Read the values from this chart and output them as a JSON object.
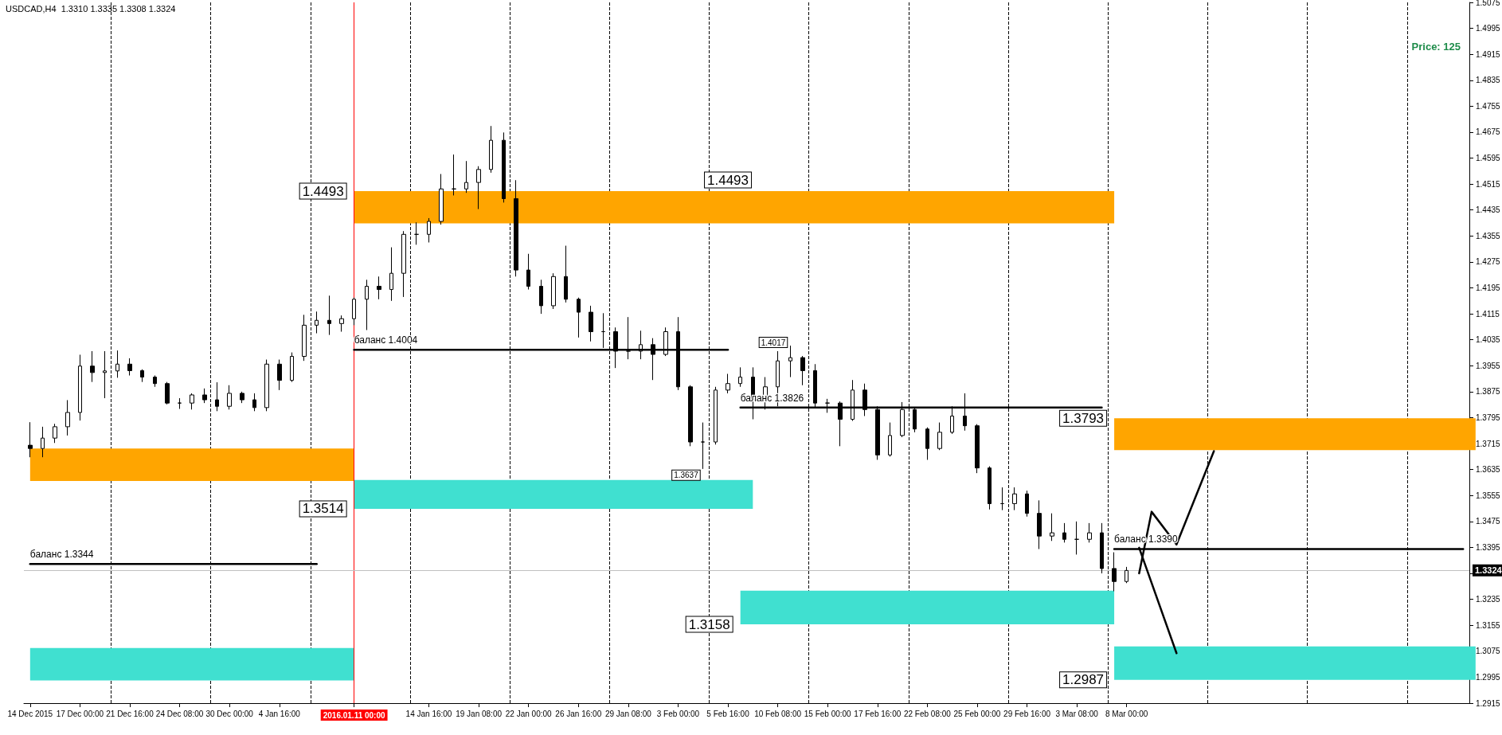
{
  "chart_data": {
    "type": "candlestick",
    "title": "USDCAD,H4  1.3310 1.3335 1.3308 1.3324",
    "categories": [
      "14 Dec 2015",
      null,
      null,
      null,
      "17 Dec 00:00",
      null,
      null,
      null,
      "21 Dec 16:00",
      null,
      null,
      null,
      "24 Dec 08:00",
      null,
      null,
      null,
      "30 Dec 00:00",
      null,
      null,
      null,
      "4 Jan 16:00",
      null,
      null,
      null,
      null,
      null,
      "2016.01.11 00:00",
      null,
      null,
      null,
      null,
      null,
      "14 Jan 16:00",
      null,
      null,
      null,
      "19 Jan 08:00",
      null,
      null,
      null,
      "22 Jan 00:00",
      null,
      null,
      null,
      "26 Jan 16:00",
      null,
      null,
      null,
      "29 Jan 08:00",
      null,
      null,
      null,
      "3 Feb 00:00",
      null,
      null,
      null,
      "5 Feb 16:00",
      null,
      null,
      null,
      "10 Feb 08:00",
      null,
      null,
      null,
      "15 Feb 00:00",
      null,
      null,
      null,
      "17 Feb 16:00",
      null,
      null,
      null,
      "22 Feb 08:00",
      null,
      null,
      null,
      "25 Feb 00:00",
      null,
      null,
      null,
      "29 Feb 16:00",
      null,
      null,
      null,
      "3 Mar 08:00",
      null,
      null,
      null,
      "8 Mar 00:00",
      null,
      null,
      null,
      null,
      null,
      null,
      null,
      null,
      null,
      null,
      null,
      null,
      null,
      null,
      null,
      null,
      null,
      null,
      null,
      null,
      null,
      null,
      null,
      null,
      null,
      null,
      null
    ],
    "ohlc": [
      [
        1.371,
        1.3781,
        1.3673,
        1.37
      ],
      [
        1.37,
        1.3767,
        1.3673,
        1.3732
      ],
      [
        1.3732,
        1.3776,
        1.3717,
        1.3767
      ],
      [
        1.3767,
        1.3849,
        1.374,
        1.3811
      ],
      [
        1.3811,
        1.3989,
        1.3786,
        1.3954
      ],
      [
        1.3954,
        1.4,
        1.3905,
        1.3934
      ],
      [
        1.3934,
        1.4,
        1.3855,
        1.3939
      ],
      [
        1.3939,
        1.4002,
        1.3918,
        1.396
      ],
      [
        1.396,
        1.3978,
        1.3925,
        1.394
      ],
      [
        1.394,
        1.3944,
        1.3905,
        1.392
      ],
      [
        1.392,
        1.3925,
        1.389,
        1.39
      ],
      [
        1.39,
        1.3905,
        1.3836,
        1.384
      ],
      [
        1.384,
        1.3855,
        1.3822,
        1.384
      ],
      [
        1.384,
        1.387,
        1.382,
        1.3865
      ],
      [
        1.3865,
        1.3885,
        1.384,
        1.385
      ],
      [
        1.385,
        1.3904,
        1.3815,
        1.383
      ],
      [
        1.383,
        1.3895,
        1.382,
        1.387
      ],
      [
        1.387,
        1.3875,
        1.384,
        1.385
      ],
      [
        1.385,
        1.387,
        1.3815,
        1.3826
      ],
      [
        1.3826,
        1.3974,
        1.3815,
        1.396
      ],
      [
        1.396,
        1.3974,
        1.388,
        1.391
      ],
      [
        1.391,
        1.3996,
        1.3905,
        1.3984
      ],
      [
        1.3984,
        1.4112,
        1.397,
        1.408
      ],
      [
        1.408,
        1.4122,
        1.4055,
        1.4095
      ],
      [
        1.4095,
        1.4171,
        1.405,
        1.4085
      ],
      [
        1.4085,
        1.411,
        1.406,
        1.41
      ],
      [
        1.41,
        1.4165,
        1.408,
        1.416
      ],
      [
        1.416,
        1.422,
        1.4065,
        1.42
      ],
      [
        1.42,
        1.423,
        1.416,
        1.419
      ],
      [
        1.419,
        1.432,
        1.4155,
        1.424
      ],
      [
        1.424,
        1.437,
        1.4167,
        1.436
      ],
      [
        1.436,
        1.4397,
        1.4328,
        1.436
      ],
      [
        1.436,
        1.441,
        1.4335,
        1.44
      ],
      [
        1.44,
        1.4546,
        1.439,
        1.45
      ],
      [
        1.45,
        1.4606,
        1.448,
        1.45
      ],
      [
        1.45,
        1.4586,
        1.4488,
        1.452
      ],
      [
        1.452,
        1.457,
        1.4438,
        1.456
      ],
      [
        1.456,
        1.4694,
        1.455,
        1.465
      ],
      [
        1.465,
        1.4674,
        1.4458,
        1.447
      ],
      [
        1.447,
        1.4527,
        1.423,
        1.425
      ],
      [
        1.425,
        1.43,
        1.419,
        1.42
      ],
      [
        1.42,
        1.422,
        1.4115,
        1.414
      ],
      [
        1.414,
        1.424,
        1.413,
        1.423
      ],
      [
        1.423,
        1.4325,
        1.415,
        1.416
      ],
      [
        1.416,
        1.4165,
        1.4042,
        1.412
      ],
      [
        1.412,
        1.414,
        1.403,
        1.406
      ],
      [
        1.406,
        1.4117,
        1.401,
        1.406
      ],
      [
        1.406,
        1.4073,
        1.3948,
        1.4
      ],
      [
        1.4,
        1.4105,
        1.3975,
        1.4
      ],
      [
        1.4,
        1.4063,
        1.3975,
        1.402
      ],
      [
        1.402,
        1.404,
        1.3911,
        1.399
      ],
      [
        1.399,
        1.4073,
        1.3985,
        1.406
      ],
      [
        1.406,
        1.4105,
        1.388,
        1.389
      ],
      [
        1.389,
        1.3895,
        1.3707,
        1.372
      ],
      [
        1.372,
        1.378,
        1.3637,
        1.372
      ],
      [
        1.372,
        1.389,
        1.3712,
        1.388
      ],
      [
        1.388,
        1.393,
        1.387,
        1.39
      ],
      [
        1.39,
        1.395,
        1.389,
        1.392
      ],
      [
        1.392,
        1.395,
        1.379,
        1.385
      ],
      [
        1.385,
        1.392,
        1.382,
        1.389
      ],
      [
        1.389,
        1.4,
        1.383,
        1.397
      ],
      [
        1.397,
        1.4017,
        1.392,
        1.398
      ],
      [
        1.398,
        1.3985,
        1.3895,
        1.394
      ],
      [
        1.394,
        1.396,
        1.3826,
        1.384
      ],
      [
        1.384,
        1.3853,
        1.381,
        1.384
      ],
      [
        1.384,
        1.3845,
        1.3707,
        1.379
      ],
      [
        1.379,
        1.3911,
        1.3785,
        1.388
      ],
      [
        1.388,
        1.39,
        1.38,
        1.382
      ],
      [
        1.382,
        1.383,
        1.3665,
        1.368
      ],
      [
        1.368,
        1.378,
        1.3675,
        1.374
      ],
      [
        1.374,
        1.3843,
        1.3735,
        1.382
      ],
      [
        1.382,
        1.3825,
        1.375,
        1.376
      ],
      [
        1.376,
        1.3765,
        1.3665,
        1.37
      ],
      [
        1.37,
        1.378,
        1.3695,
        1.375
      ],
      [
        1.375,
        1.383,
        1.3745,
        1.38
      ],
      [
        1.38,
        1.387,
        1.3755,
        1.377
      ],
      [
        1.377,
        1.3775,
        1.3624,
        1.364
      ],
      [
        1.364,
        1.3645,
        1.3512,
        1.353
      ],
      [
        1.353,
        1.358,
        1.351,
        1.353
      ],
      [
        1.353,
        1.358,
        1.351,
        1.356
      ],
      [
        1.356,
        1.357,
        1.349,
        1.35
      ],
      [
        1.35,
        1.354,
        1.339,
        1.343
      ],
      [
        1.343,
        1.35,
        1.3415,
        1.344
      ],
      [
        1.344,
        1.347,
        1.341,
        1.342
      ],
      [
        1.342,
        1.3475,
        1.3373,
        1.342
      ],
      [
        1.342,
        1.347,
        1.341,
        1.344
      ],
      [
        1.344,
        1.347,
        1.3315,
        1.333
      ],
      [
        1.333,
        1.338,
        1.326,
        1.329
      ],
      [
        1.329,
        1.3335,
        1.3285,
        1.3324
      ],
      null,
      null,
      null,
      null,
      null,
      null,
      null,
      null,
      null,
      null,
      null,
      null,
      null,
      null,
      null,
      null,
      null,
      null,
      null,
      null,
      null,
      null,
      null,
      null,
      null,
      null,
      null
    ],
    "series": [
      {
        "type": "line",
        "color": "#000000",
        "values": [
          null,
          null,
          null,
          null,
          null,
          null,
          null,
          null,
          null,
          null,
          null,
          null,
          null,
          null,
          null,
          null,
          null,
          null,
          null,
          null,
          null,
          null,
          null,
          null,
          null,
          null,
          null,
          null,
          null,
          null,
          null,
          null,
          null,
          null,
          null,
          null,
          null,
          null,
          null,
          null,
          null,
          null,
          null,
          null,
          null,
          null,
          null,
          null,
          null,
          null,
          null,
          null,
          null,
          null,
          null,
          null,
          null,
          null,
          null,
          null,
          null,
          null,
          null,
          null,
          null,
          null,
          null,
          null,
          null,
          null,
          null,
          null,
          null,
          null,
          null,
          null,
          null,
          null,
          null,
          null,
          null,
          null,
          null,
          null,
          null,
          null,
          null,
          null,
          null,
          1.3315,
          1.3505,
          null,
          1.3404,
          null,
          null,
          1.3692,
          null,
          null,
          null,
          null,
          null,
          null,
          null,
          null,
          null,
          null,
          null,
          null,
          null,
          null,
          null,
          null,
          null,
          null,
          null,
          null
        ]
      },
      {
        "type": "line",
        "color": "#000000",
        "values": [
          null,
          null,
          null,
          null,
          null,
          null,
          null,
          null,
          null,
          null,
          null,
          null,
          null,
          null,
          null,
          null,
          null,
          null,
          null,
          null,
          null,
          null,
          null,
          null,
          null,
          null,
          null,
          null,
          null,
          null,
          null,
          null,
          null,
          null,
          null,
          null,
          null,
          null,
          null,
          null,
          null,
          null,
          null,
          null,
          null,
          null,
          null,
          null,
          null,
          null,
          null,
          null,
          null,
          null,
          null,
          null,
          null,
          null,
          null,
          null,
          null,
          null,
          null,
          null,
          null,
          null,
          null,
          null,
          null,
          null,
          null,
          null,
          null,
          null,
          null,
          null,
          null,
          null,
          null,
          null,
          null,
          null,
          null,
          null,
          null,
          null,
          null,
          null,
          null,
          1.3394,
          null,
          null,
          1.3069,
          null,
          null,
          null,
          null,
          null,
          null,
          null,
          null,
          null,
          null,
          null,
          null,
          null,
          null,
          null,
          null,
          null,
          null,
          null,
          null,
          null,
          null,
          null
        ]
      },
      {
        "type": "line",
        "name": "баланс 1.4004",
        "color": "#000000",
        "values": [
          null,
          null,
          null,
          null,
          null,
          null,
          null,
          null,
          null,
          null,
          null,
          null,
          null,
          null,
          null,
          null,
          null,
          null,
          null,
          null,
          null,
          null,
          null,
          null,
          null,
          null,
          1.4004,
          1.4004,
          1.4004,
          1.4004,
          1.4004,
          1.4004,
          1.4004,
          1.4004,
          1.4004,
          1.4004,
          1.4004,
          1.4004,
          1.4004,
          1.4004,
          1.4004,
          1.4004,
          1.4004,
          1.4004,
          1.4004,
          1.4004,
          1.4004,
          1.4004,
          1.4004,
          1.4004,
          1.4004,
          1.4004,
          1.4004,
          1.4004,
          1.4004,
          1.4004,
          1.4004,
          null,
          null,
          null,
          null,
          null,
          null,
          null,
          null,
          null,
          null,
          null,
          null,
          null,
          null,
          null,
          null,
          null,
          null,
          null,
          null,
          null,
          null,
          null,
          null,
          null,
          null,
          null,
          null,
          null,
          null,
          null,
          null,
          null,
          null,
          null,
          null,
          null,
          null,
          null,
          null,
          null,
          null,
          null,
          null,
          null,
          null,
          null,
          null,
          null,
          null,
          null,
          null,
          null,
          null,
          null,
          null,
          null,
          null,
          null
        ]
      },
      {
        "type": "line",
        "name": "баланс 1.3826",
        "color": "#000000",
        "values": [
          null,
          null,
          null,
          null,
          null,
          null,
          null,
          null,
          null,
          null,
          null,
          null,
          null,
          null,
          null,
          null,
          null,
          null,
          null,
          null,
          null,
          null,
          null,
          null,
          null,
          null,
          null,
          null,
          null,
          null,
          null,
          null,
          null,
          null,
          null,
          null,
          null,
          null,
          null,
          null,
          null,
          null,
          null,
          null,
          null,
          null,
          null,
          null,
          null,
          null,
          null,
          null,
          null,
          null,
          null,
          null,
          null,
          1.3826,
          1.3826,
          1.3826,
          1.3826,
          1.3826,
          1.3826,
          1.3826,
          1.3826,
          1.3826,
          1.3826,
          1.3826,
          1.3826,
          1.3826,
          1.3826,
          1.3826,
          1.3826,
          1.3826,
          1.3826,
          1.3826,
          1.3826,
          1.3826,
          1.3826,
          1.3826,
          1.3826,
          1.3826,
          1.3826,
          1.3826,
          1.3826,
          1.3826,
          1.3826,
          null,
          null,
          null,
          null,
          null,
          null,
          null,
          null,
          null,
          null,
          null,
          null,
          null,
          null,
          null,
          null,
          null,
          null,
          null,
          null,
          null,
          null,
          null,
          null,
          null,
          null,
          null,
          null,
          null
        ]
      },
      {
        "type": "line",
        "name": "баланс 1.3390",
        "color": "#000000",
        "values": [
          null,
          null,
          null,
          null,
          null,
          null,
          null,
          null,
          null,
          null,
          null,
          null,
          null,
          null,
          null,
          null,
          null,
          null,
          null,
          null,
          null,
          null,
          null,
          null,
          null,
          null,
          null,
          null,
          null,
          null,
          null,
          null,
          null,
          null,
          null,
          null,
          null,
          null,
          null,
          null,
          null,
          null,
          null,
          null,
          null,
          null,
          null,
          null,
          null,
          null,
          null,
          null,
          null,
          null,
          null,
          null,
          null,
          null,
          null,
          null,
          null,
          null,
          null,
          null,
          null,
          null,
          null,
          null,
          null,
          null,
          null,
          null,
          null,
          null,
          null,
          null,
          null,
          null,
          null,
          null,
          null,
          null,
          null,
          null,
          null,
          null,
          null,
          1.339,
          1.339,
          1.339,
          1.339,
          1.339,
          1.339,
          1.339,
          1.339,
          1.339,
          1.339,
          1.339,
          1.339,
          1.339,
          1.339,
          1.339,
          1.339,
          1.339,
          1.339,
          1.339,
          1.339,
          1.339,
          1.339,
          1.339,
          1.339,
          1.339,
          1.339,
          1.339,
          1.339,
          1.339
        ]
      },
      {
        "type": "line",
        "name": "баланс 1.3344",
        "color": "#000000",
        "values": [
          1.3344,
          1.3344,
          1.3344,
          1.3344,
          1.3344,
          1.3344,
          1.3344,
          1.3344,
          1.3344,
          1.3344,
          1.3344,
          1.3344,
          1.3344,
          1.3344,
          1.3344,
          1.3344,
          1.3344,
          1.3344,
          1.3344,
          1.3344,
          1.3344,
          1.3344,
          1.3344,
          1.3344,
          null,
          null,
          null,
          null,
          null,
          null,
          null,
          null,
          null,
          null,
          null,
          null,
          null,
          null,
          null,
          null,
          null,
          null,
          null,
          null,
          null,
          null,
          null,
          null,
          null,
          null,
          null,
          null,
          null,
          null,
          null,
          null,
          null,
          null,
          null,
          null,
          null,
          null,
          null,
          null,
          null,
          null,
          null,
          null,
          null,
          null,
          null,
          null,
          null,
          null,
          null,
          null,
          null,
          null,
          null,
          null,
          null,
          null,
          null,
          null,
          null,
          null,
          null,
          null,
          null,
          null,
          null,
          null,
          null,
          null,
          null,
          null,
          null,
          null,
          null,
          null,
          null,
          null,
          null,
          null,
          null,
          null,
          null,
          null,
          null,
          null,
          null,
          null,
          null,
          null,
          null,
          null
        ]
      }
    ],
    "ylim": [
      1.2915,
      1.5075
    ],
    "yticks": [
      1.2915,
      1.2995,
      1.3075,
      1.3155,
      1.3235,
      {
        "value": 1.3315,
        "label": null
      },
      1.3395,
      1.3475,
      1.3555,
      1.3635,
      1.3715,
      1.3795,
      1.3875,
      1.3955,
      1.4035,
      1.4115,
      1.4195,
      1.4275,
      1.4355,
      1.4435,
      1.4515,
      1.4595,
      1.4675,
      1.4755,
      1.4835,
      1.4915,
      1.4995,
      1.5075
    ],
    "grid": "x",
    "marker": "none",
    "line_style": "solid",
    "ref_lines": [
      {
        "axis": "x",
        "value": "2016.01.11 00:00",
        "color": "#ff0000"
      },
      {
        "axis": "y",
        "value": 1.3324,
        "label": "1.3324",
        "color": "#c0c0c0"
      }
    ],
    "bands": [
      {
        "axis": "y",
        "from": 1.36,
        "to": 1.37,
        "color": "#ffa500"
      },
      {
        "axis": "y",
        "from": 1.2985,
        "to": 1.3085,
        "color": "#40e0d0"
      },
      {
        "axis": "y",
        "from": 1.4394,
        "to": 1.4493,
        "color": "#ffa500"
      },
      {
        "axis": "y",
        "from": 1.3514,
        "to": 1.3603,
        "color": "#40e0d0"
      },
      {
        "axis": "y",
        "from": 1.3158,
        "to": 1.3262,
        "color": "#40e0d0"
      },
      {
        "axis": "y",
        "from": 1.3695,
        "to": 1.3793,
        "color": "#ffa500"
      },
      {
        "axis": "y",
        "from": 1.2987,
        "to": 1.309,
        "color": "#40e0d0"
      }
    ],
    "annotations": [
      "Price: 125",
      "1.4493",
      "1.4493",
      "1.3514",
      "1.3793",
      "1.3158",
      "1.2987",
      "1.3637",
      "1.4017"
    ]
  }
}
